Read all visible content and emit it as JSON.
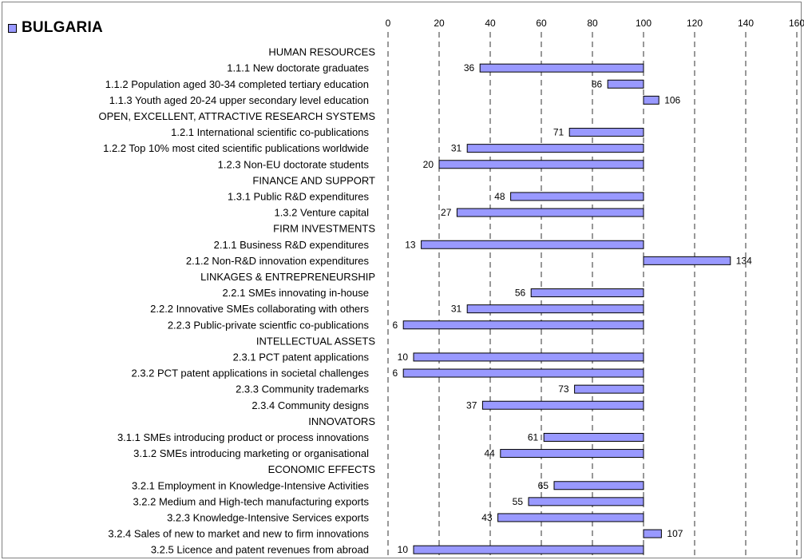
{
  "chart_data": {
    "type": "bar",
    "orientation": "horizontal",
    "title": "BULGARIA",
    "legend": {
      "label": "BULGARIA",
      "color": "#9999ff",
      "position": "top-left"
    },
    "xlim": [
      0,
      160
    ],
    "x_ticks": [
      "0",
      "20",
      "40",
      "60",
      "80",
      "100",
      "120",
      "140",
      "160"
    ],
    "reference_value": 100,
    "grid": "vertical dashed",
    "bar_color": "#9999ff",
    "rows": [
      {
        "label": "HUMAN RESOURCES",
        "header": true
      },
      {
        "label": "1.1.1 New doctorate graduates",
        "value": 36
      },
      {
        "label": "1.1.2 Population aged 30-34 completed tertiary education",
        "value": 86
      },
      {
        "label": "1.1.3 Youth aged 20-24 upper secondary level education",
        "value": 106
      },
      {
        "label": "OPEN, EXCELLENT, ATTRACTIVE RESEARCH SYSTEMS",
        "header": true
      },
      {
        "label": "1.2.1 International scientific co-publications",
        "value": 71
      },
      {
        "label": "1.2.2 Top 10% most cited scientific publications worldwide",
        "value": 31
      },
      {
        "label": "1.2.3 Non-EU doctorate students",
        "value": 20
      },
      {
        "label": "FINANCE AND SUPPORT",
        "header": true
      },
      {
        "label": "1.3.1 Public R&D expenditures",
        "value": 48
      },
      {
        "label": "1.3.2 Venture capital",
        "value": 27
      },
      {
        "label": "FIRM INVESTMENTS",
        "header": true
      },
      {
        "label": "2.1.1 Business R&D expenditures",
        "value": 13
      },
      {
        "label": "2.1.2 Non-R&D innovation expenditures",
        "value": 134
      },
      {
        "label": "LINKAGES & ENTREPRENEURSHIP",
        "header": true
      },
      {
        "label": "2.2.1 SMEs innovating in-house",
        "value": 56
      },
      {
        "label": "2.2.2 Innovative SMEs collaborating with others",
        "value": 31
      },
      {
        "label": "2.2.3 Public-private scientfic co-publications",
        "value": 6
      },
      {
        "label": "INTELLECTUAL ASSETS",
        "header": true
      },
      {
        "label": "2.3.1 PCT patent applications",
        "value": 10
      },
      {
        "label": "2.3.2 PCT patent applications in societal challenges",
        "value": 6
      },
      {
        "label": "2.3.3 Community trademarks",
        "value": 73
      },
      {
        "label": "2.3.4 Community designs",
        "value": 37
      },
      {
        "label": "INNOVATORS",
        "header": true
      },
      {
        "label": "3.1.1 SMEs introducing product or process innovations",
        "value": 61
      },
      {
        "label": "3.1.2 SMEs introducing marketing or organisational",
        "value": 44
      },
      {
        "label": "ECONOMIC EFFECTS",
        "header": true
      },
      {
        "label": "3.2.1 Employment in Knowledge-Intensive Activities",
        "value": 65
      },
      {
        "label": "3.2.2 Medium and High-tech manufacturing exports",
        "value": 55
      },
      {
        "label": "3.2.3 Knowledge-Intensive Services exports",
        "value": 43
      },
      {
        "label": "3.2.4 Sales of new to market and new to firm innovations",
        "value": 107
      },
      {
        "label": "3.2.5 Licence and patent revenues from abroad",
        "value": 10
      }
    ]
  }
}
